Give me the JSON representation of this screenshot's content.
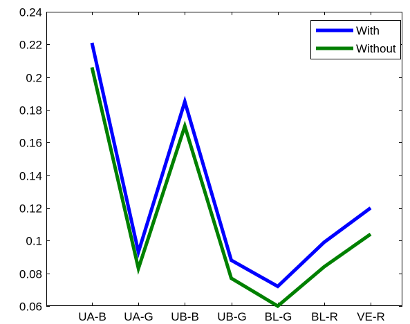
{
  "chart_data": {
    "type": "line",
    "title": "",
    "xlabel": "",
    "ylabel": "",
    "categories": [
      "UA-B",
      "UA-G",
      "UB-B",
      "UB-G",
      "BL-G",
      "BL-R",
      "VE-R"
    ],
    "ylim": [
      0.06,
      0.24
    ],
    "yticks": [
      "0.06",
      "0.08",
      "0.1",
      "0.12",
      "0.14",
      "0.16",
      "0.18",
      "0.2",
      "0.22",
      "0.24"
    ],
    "grid": false,
    "legend_position": "top-right",
    "series": [
      {
        "name": "With",
        "color": "#0000ff",
        "values": [
          0.221,
          0.093,
          0.185,
          0.088,
          0.072,
          0.099,
          0.12
        ]
      },
      {
        "name": "Without",
        "color": "#008000",
        "values": [
          0.206,
          0.083,
          0.17,
          0.077,
          0.06,
          0.084,
          0.104
        ]
      }
    ]
  }
}
